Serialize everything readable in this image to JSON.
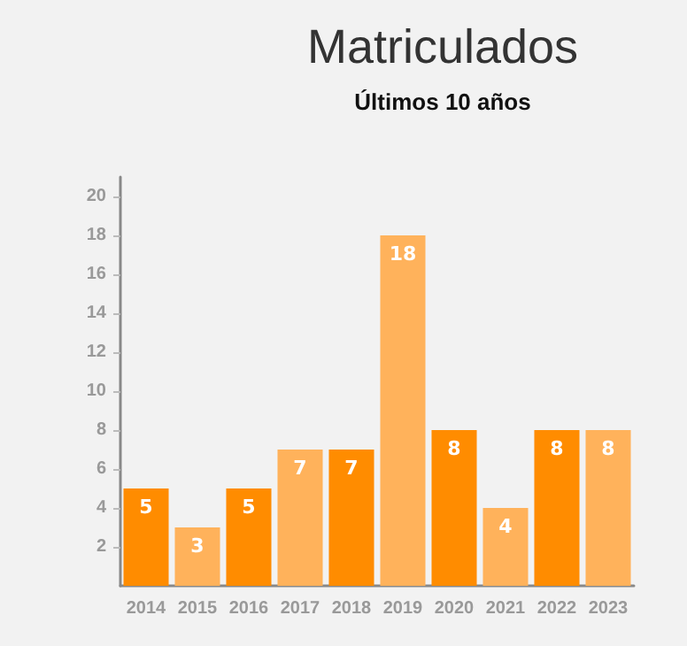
{
  "chart_data": {
    "type": "bar",
    "title": "Matriculados",
    "subtitle": "Últimos 10 años",
    "categories": [
      "2014",
      "2015",
      "2016",
      "2017",
      "2018",
      "2019",
      "2020",
      "2021",
      "2022",
      "2023"
    ],
    "values": [
      5,
      3,
      5,
      7,
      7,
      18,
      8,
      4,
      8,
      8
    ],
    "colors": [
      "#ff8c00",
      "#ffb25b",
      "#ff8c00",
      "#ffb25b",
      "#ff8c00",
      "#ffb25b",
      "#ff8c00",
      "#ffb25b",
      "#ff8c00",
      "#ffb25b"
    ],
    "ylim": [
      0,
      21
    ],
    "yticks": [
      2,
      4,
      6,
      8,
      10,
      12,
      14,
      16,
      18,
      20
    ],
    "data_labels": true
  }
}
